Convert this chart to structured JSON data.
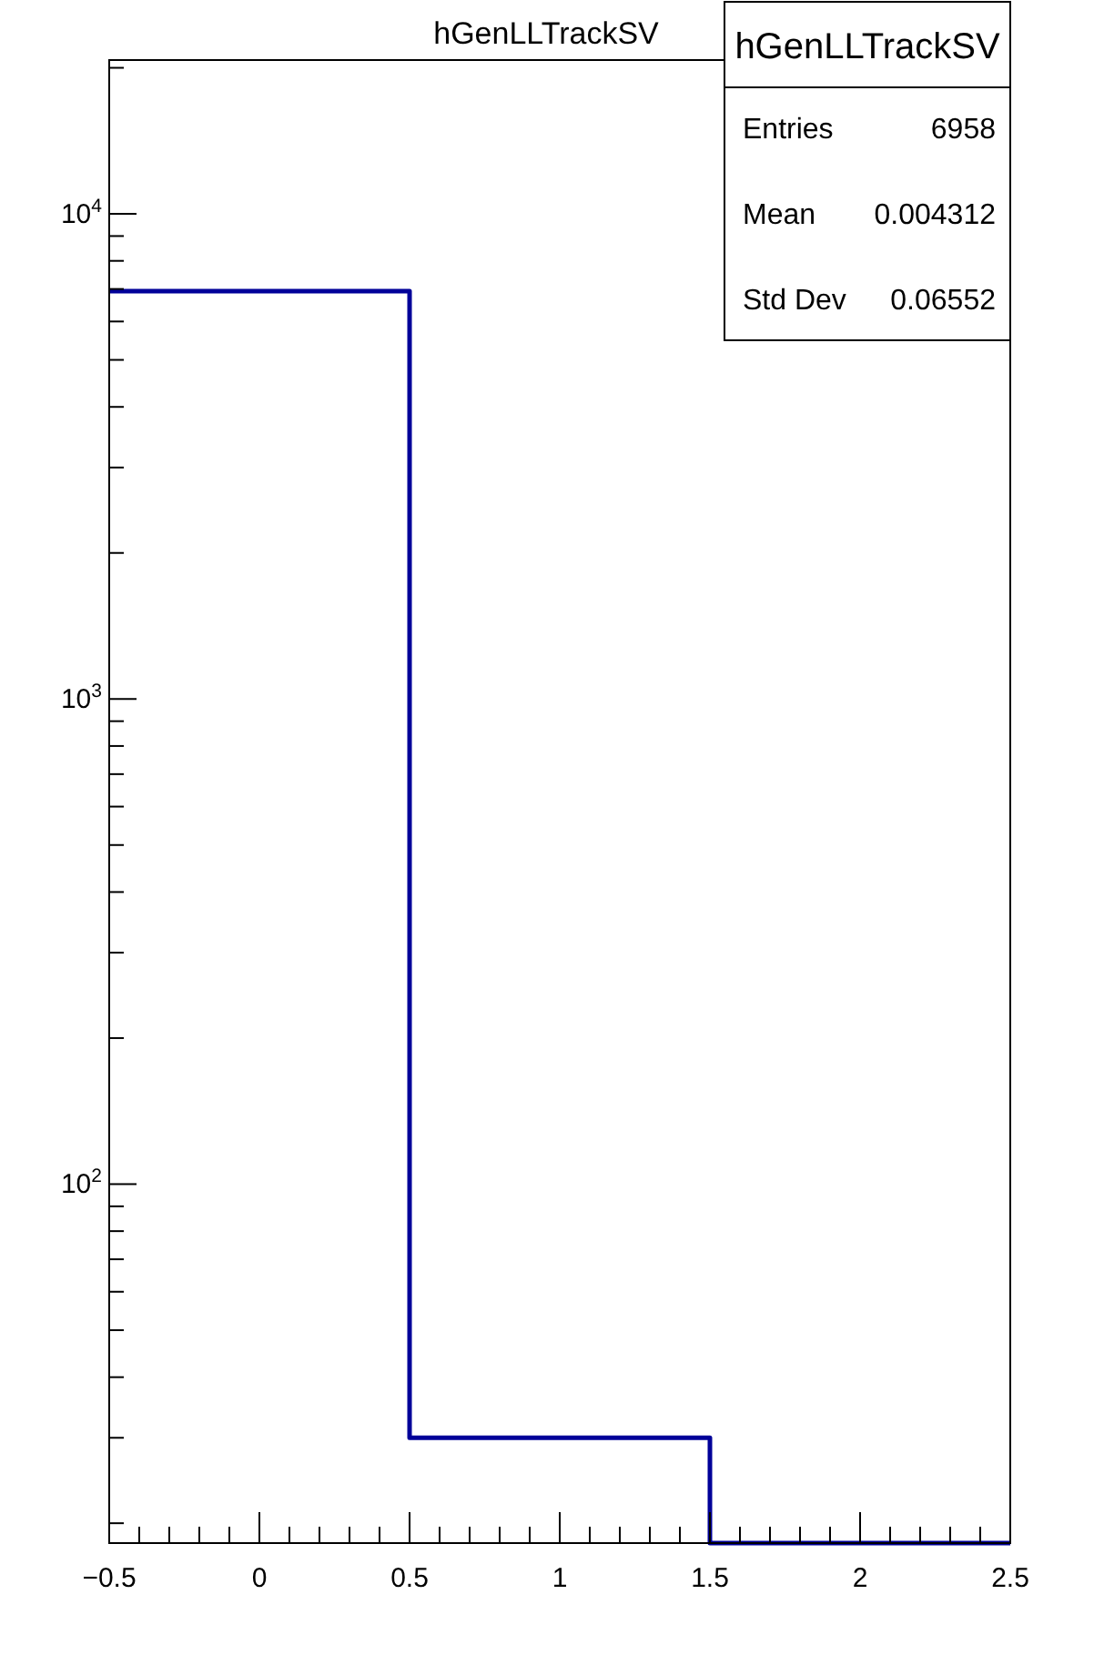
{
  "chart_data": {
    "type": "histogram",
    "title": "hGenLLTrackSV",
    "bins": [
      -0.5,
      0.5,
      1.5,
      2.5
    ],
    "values": [
      6928,
      30,
      null
    ],
    "color": "#000099",
    "log": "y",
    "xlim": [
      -0.5,
      2.5
    ],
    "xticks": [
      {
        "value": -0.5,
        "label": "−0.5"
      },
      {
        "value": -0.4,
        "label": null
      },
      {
        "value": -0.3,
        "label": null
      },
      {
        "value": -0.2,
        "label": null
      },
      {
        "value": -0.1,
        "label": null
      },
      0,
      {
        "value": 0.1,
        "label": null
      },
      {
        "value": 0.2,
        "label": null
      },
      {
        "value": 0.3,
        "label": null
      },
      {
        "value": 0.4,
        "label": null
      },
      0.5,
      {
        "value": 0.6,
        "label": null
      },
      {
        "value": 0.7,
        "label": null
      },
      {
        "value": 0.8,
        "label": null
      },
      {
        "value": 0.9,
        "label": null
      },
      1,
      {
        "value": 1.1,
        "label": null
      },
      {
        "value": 1.2,
        "label": null
      },
      {
        "value": 1.3,
        "label": null
      },
      {
        "value": 1.4,
        "label": null
      },
      1.5,
      {
        "value": 1.6,
        "label": null
      },
      {
        "value": 1.7,
        "label": null
      },
      {
        "value": 1.8,
        "label": null
      },
      {
        "value": 1.9,
        "label": null
      },
      2,
      {
        "value": 2.1,
        "label": null
      },
      {
        "value": 2.2,
        "label": null
      },
      {
        "value": 2.3,
        "label": null
      },
      {
        "value": 2.4,
        "label": null
      },
      2.5
    ],
    "ylim": [
      18.2,
      20750
    ],
    "yticks": [
      {
        "value": 20,
        "label": null
      },
      {
        "value": 30,
        "label": null
      },
      {
        "value": 40,
        "label": null
      },
      {
        "value": 50,
        "label": null
      },
      {
        "value": 60,
        "label": null
      },
      {
        "value": 70,
        "label": null
      },
      {
        "value": 80,
        "label": null
      },
      {
        "value": 90,
        "label": null
      },
      {
        "value": 100,
        "label": "10$^{2}$"
      },
      {
        "value": 200,
        "label": null
      },
      {
        "value": 300,
        "label": null
      },
      {
        "value": 400,
        "label": null
      },
      {
        "value": 500,
        "label": null
      },
      {
        "value": 600,
        "label": null
      },
      {
        "value": 700,
        "label": null
      },
      {
        "value": 800,
        "label": null
      },
      {
        "value": 900,
        "label": null
      },
      {
        "value": 1000,
        "label": "10$^{3}$"
      },
      {
        "value": 2000,
        "label": null
      },
      {
        "value": 3000,
        "label": null
      },
      {
        "value": 4000,
        "label": null
      },
      {
        "value": 5000,
        "label": null
      },
      {
        "value": 6000,
        "label": null
      },
      {
        "value": 7000,
        "label": null
      },
      {
        "value": 8000,
        "label": null
      },
      {
        "value": 9000,
        "label": null
      },
      {
        "value": 10000,
        "label": "10$^{4}$"
      },
      {
        "value": 20000,
        "label": null
      }
    ],
    "grid": false,
    "annotations": [
      "hGenLLTrackSV",
      "Entries",
      "6958",
      "Mean",
      "0.004312",
      "Std Dev",
      "0.06552"
    ]
  }
}
